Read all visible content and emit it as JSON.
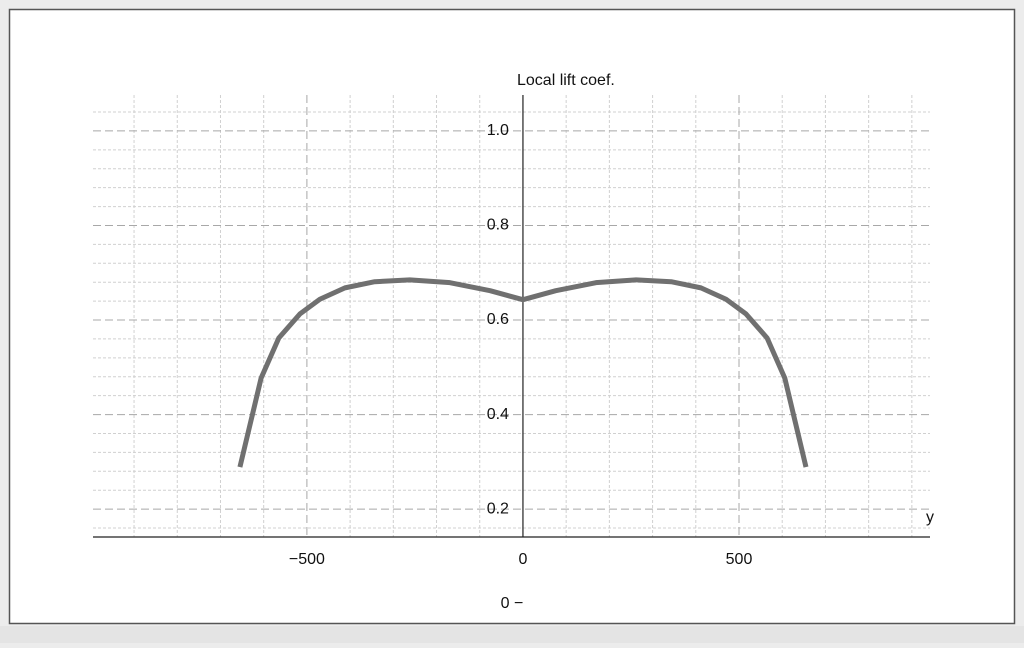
{
  "chart_data": {
    "type": "line",
    "ylabel": "Local lift coef.",
    "xlabel": "y",
    "footer_text": "0 −",
    "x": [
      -655,
      -606,
      -565,
      -516,
      -470,
      -412,
      -343,
      -262,
      -169,
      -76,
      0,
      76,
      169,
      262,
      343,
      412,
      470,
      516,
      565,
      606,
      655
    ],
    "series": [
      {
        "color": "#707070",
        "values": [
          0.289,
          0.477,
          0.562,
          0.613,
          0.644,
          0.668,
          0.681,
          0.685,
          0.679,
          0.662,
          0.643,
          0.662,
          0.679,
          0.685,
          0.681,
          0.668,
          0.644,
          0.613,
          0.562,
          0.477,
          0.289
        ]
      }
    ],
    "xlim": [
      -995,
      942
    ],
    "ylim": [
      0.141,
      1.076
    ],
    "xticks": [
      {
        "value": -500,
        "label": "−500"
      },
      0,
      500
    ],
    "yticks": [
      0.2,
      0.4,
      0.6,
      0.8,
      {
        "value": 1,
        "label": "1.0"
      }
    ],
    "minor_xticks": [
      -900,
      -800,
      -700,
      -600,
      -400,
      -300,
      -200,
      -100,
      100,
      200,
      300,
      400,
      600,
      700,
      800,
      900
    ],
    "minor_yticks": [
      0.16,
      0.24,
      0.28,
      0.32,
      0.36,
      0.44,
      0.48,
      0.52,
      0.56,
      0.64,
      0.68,
      0.72,
      0.76,
      0.84,
      0.88,
      0.92,
      0.96,
      1.04
    ],
    "grid": true
  }
}
